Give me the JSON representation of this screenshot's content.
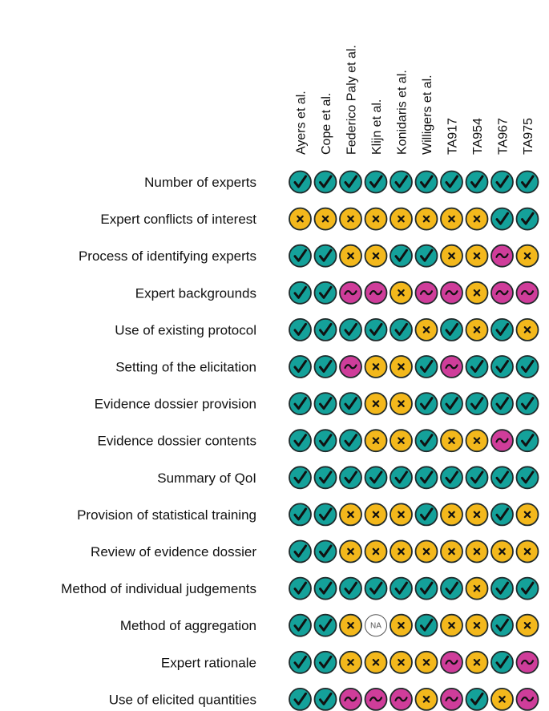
{
  "chart_data": {
    "type": "table",
    "title": "",
    "columns": [
      "Ayers et al.",
      "Cope et al.",
      "Federico Paly et al.",
      "Klijn et al.",
      "Konidaris et al.",
      "Willigers et al.",
      "TA917",
      "TA954",
      "TA967",
      "TA975"
    ],
    "rows": [
      "Number of experts",
      "Expert conflicts of interest",
      "Process of identifying experts",
      "Expert backgrounds",
      "Use of existing protocol",
      "Setting of the elicitation",
      "Evidence dossier provision",
      "Evidence dossier contents",
      "Summary of QoI",
      "Provision of statistical training",
      "Review of evidence dossier",
      "Method of individual judgements",
      "Method of aggregation",
      "Expert rationale ",
      "Use of elicited quantities"
    ],
    "values": [
      [
        "Y",
        "Y",
        "Y",
        "Y",
        "Y",
        "Y",
        "Y",
        "Y",
        "Y",
        "Y"
      ],
      [
        "X",
        "X",
        "X",
        "X",
        "X",
        "X",
        "X",
        "X",
        "Y",
        "Y"
      ],
      [
        "Y",
        "Y",
        "X",
        "X",
        "Y",
        "Y",
        "X",
        "X",
        "P",
        "X"
      ],
      [
        "Y",
        "Y",
        "P",
        "P",
        "X",
        "P",
        "P",
        "X",
        "P",
        "P"
      ],
      [
        "Y",
        "Y",
        "Y",
        "Y",
        "Y",
        "X",
        "Y",
        "X",
        "Y",
        "X"
      ],
      [
        "Y",
        "Y",
        "P",
        "X",
        "X",
        "Y",
        "P",
        "Y",
        "Y",
        "Y"
      ],
      [
        "Y",
        "Y",
        "Y",
        "X",
        "X",
        "Y",
        "Y",
        "Y",
        "Y",
        "Y"
      ],
      [
        "Y",
        "Y",
        "Y",
        "X",
        "X",
        "Y",
        "X",
        "X",
        "P",
        "Y"
      ],
      [
        "Y",
        "Y",
        "Y",
        "Y",
        "Y",
        "Y",
        "Y",
        "Y",
        "Y",
        "Y"
      ],
      [
        "Y",
        "Y",
        "X",
        "X",
        "X",
        "Y",
        "X",
        "X",
        "Y",
        "X"
      ],
      [
        "Y",
        "Y",
        "X",
        "X",
        "X",
        "X",
        "X",
        "X",
        "X",
        "X"
      ],
      [
        "Y",
        "Y",
        "Y",
        "Y",
        "Y",
        "Y",
        "Y",
        "X",
        "Y",
        "Y"
      ],
      [
        "Y",
        "Y",
        "X",
        "NA",
        "X",
        "Y",
        "X",
        "X",
        "Y",
        "X"
      ],
      [
        "Y",
        "Y",
        "X",
        "X",
        "X",
        "X",
        "P",
        "X",
        "Y",
        "P"
      ],
      [
        "Y",
        "Y",
        "P",
        "P",
        "P",
        "X",
        "P",
        "Y",
        "X",
        "P"
      ]
    ],
    "legend": {
      "Y": {
        "symbol": "✓",
        "color": "#14a19a"
      },
      "X": {
        "symbol": "×",
        "color": "#f3b81c"
      },
      "P": {
        "symbol": "~",
        "color": "#cf3d9a"
      },
      "NA": {
        "symbol": "NA",
        "color": "#ffffff"
      }
    }
  }
}
